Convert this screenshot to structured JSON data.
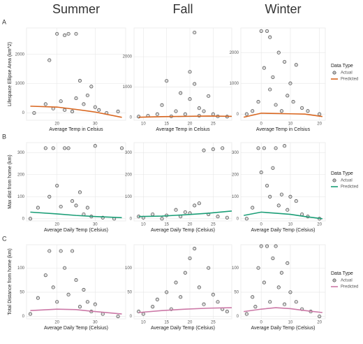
{
  "column_titles": [
    "Summer",
    "Fall",
    "Winter"
  ],
  "row_labels": [
    "A",
    "B",
    "C"
  ],
  "chart_data": [
    {
      "type": "scatter",
      "xlabel": "Average Temp in Celsius",
      "ylabel": "Lifespace Ellipse Area (km^2)",
      "xlim": [
        12,
        38
      ],
      "xticks": [
        20,
        30
      ],
      "ylim": [
        -250,
        2900
      ],
      "yticks": [
        0,
        1000,
        2000
      ],
      "series": [
        {
          "color": "#444444",
          "x": [
            14,
            17,
            18,
            19,
            20,
            21,
            22,
            22,
            23,
            24,
            25,
            25,
            26,
            27,
            28,
            29,
            30,
            31,
            33,
            36
          ],
          "values": [
            0,
            300,
            1800,
            150,
            2700,
            400,
            2650,
            100,
            2700,
            50,
            500,
            2700,
            1100,
            300,
            600,
            900,
            200,
            100,
            0,
            50
          ]
        },
        {
          "color": "#d9661f",
          "line": true,
          "x": [
            13,
            20,
            25,
            30,
            37
          ],
          "values": [
            230,
            200,
            120,
            30,
            -150
          ]
        }
      ]
    },
    {
      "type": "scatter",
      "xlabel": "Average Temp in Celsius",
      "xlim": [
        8,
        29
      ],
      "xticks": [
        10,
        15,
        20,
        25
      ],
      "ylim": [
        -100,
        2950
      ],
      "yticks": [
        0,
        1000,
        2000
      ],
      "series": [
        {
          "color": "#444444",
          "x": [
            9,
            11,
            13,
            14,
            15,
            16,
            17,
            18,
            19,
            20,
            20,
            21,
            21,
            22,
            22,
            23,
            24,
            25,
            26,
            28
          ],
          "values": [
            20,
            50,
            100,
            400,
            1200,
            30,
            200,
            800,
            100,
            1500,
            600,
            2800,
            1100,
            300,
            50,
            200,
            700,
            100,
            30,
            20
          ]
        },
        {
          "color": "#d9661f",
          "line": true,
          "x": [
            9,
            14,
            19,
            24,
            29
          ],
          "values": [
            0,
            20,
            30,
            40,
            30
          ]
        }
      ]
    },
    {
      "type": "scatter",
      "xlabel": "Average Temp in Celsius",
      "legend_title": "Data Type",
      "xlim": [
        -7,
        22
      ],
      "xticks": [
        0,
        10,
        20
      ],
      "ylim": [
        -200,
        2800
      ],
      "yticks": [
        0,
        1000,
        2000
      ],
      "series": [
        {
          "name": "Actual",
          "color": "#444444",
          "x": [
            -5,
            -3,
            -1,
            0,
            1,
            2,
            3,
            3,
            4,
            5,
            6,
            7,
            8,
            9,
            10,
            11,
            12,
            14,
            16,
            20
          ],
          "values": [
            0,
            100,
            400,
            2700,
            1500,
            2700,
            2500,
            800,
            1200,
            300,
            2000,
            100,
            1700,
            600,
            1000,
            400,
            1600,
            200,
            100,
            0
          ]
        },
        {
          "name": "Predicted",
          "color": "#d9661f",
          "line": true,
          "x": [
            -6,
            0,
            5,
            10,
            15,
            21
          ],
          "values": [
            -100,
            30,
            20,
            10,
            0,
            -80
          ]
        }
      ]
    },
    {
      "type": "scatter",
      "xlabel": "Average Daily Temp (Celsius)",
      "ylabel": "Max dist from home (km)",
      "xlim": [
        12,
        38
      ],
      "xticks": [
        20,
        30
      ],
      "ylim": [
        -10,
        345
      ],
      "yticks": [
        0,
        100,
        200,
        300
      ],
      "series": [
        {
          "color": "#444444",
          "x": [
            13,
            15,
            17,
            18,
            19,
            20,
            21,
            22,
            23,
            24,
            25,
            26,
            27,
            28,
            29,
            30,
            32,
            35,
            37
          ],
          "values": [
            0,
            50,
            320,
            100,
            320,
            150,
            55,
            320,
            320,
            80,
            60,
            120,
            20,
            50,
            10,
            330,
            5,
            0,
            320
          ]
        },
        {
          "color": "#1b9e77",
          "line": true,
          "x": [
            13,
            20,
            25,
            30,
            37
          ],
          "values": [
            30,
            22,
            15,
            10,
            5
          ]
        }
      ]
    },
    {
      "type": "scatter",
      "xlabel": "Average Daily Temp (Celsius)",
      "xlim": [
        8,
        29
      ],
      "xticks": [
        10,
        15,
        20,
        25
      ],
      "ylim": [
        -10,
        345
      ],
      "yticks": [
        0,
        100,
        200,
        300
      ],
      "series": [
        {
          "color": "#444444",
          "x": [
            9,
            10,
            12,
            14,
            15,
            17,
            18,
            19,
            20,
            21,
            22,
            23,
            24,
            25,
            26,
            27,
            28
          ],
          "values": [
            10,
            5,
            20,
            0,
            15,
            40,
            10,
            30,
            25,
            60,
            70,
            310,
            20,
            315,
            10,
            320,
            5
          ]
        },
        {
          "color": "#1b9e77",
          "line": true,
          "x": [
            9,
            14,
            19,
            24,
            29
          ],
          "values": [
            10,
            12,
            18,
            25,
            35
          ]
        }
      ]
    },
    {
      "type": "scatter",
      "xlabel": "Average Daily Temp (Celsius)",
      "legend_title": "Data Type",
      "xlim": [
        -7,
        22
      ],
      "xticks": [
        0,
        10,
        20
      ],
      "ylim": [
        -10,
        345
      ],
      "yticks": [
        0,
        100,
        200,
        300
      ],
      "series": [
        {
          "name": "Actual",
          "color": "#444444",
          "x": [
            -5,
            -3,
            -1,
            0,
            1,
            2,
            3,
            4,
            5,
            6,
            7,
            8,
            9,
            10,
            12,
            14,
            16,
            20
          ],
          "values": [
            0,
            50,
            320,
            210,
            320,
            150,
            100,
            230,
            320,
            60,
            110,
            330,
            40,
            100,
            80,
            20,
            10,
            0
          ]
        },
        {
          "name": "Predicted",
          "color": "#1b9e77",
          "line": true,
          "x": [
            -6,
            0,
            5,
            10,
            15,
            21
          ],
          "values": [
            15,
            30,
            25,
            20,
            10,
            0
          ]
        }
      ]
    },
    {
      "type": "scatter",
      "xlabel": "Average Daily Temp (Celsius)",
      "ylabel": "Total Distance from home (km)",
      "xlim": [
        12,
        38
      ],
      "xticks": [
        20,
        30
      ],
      "ylim": [
        -5,
        148
      ],
      "yticks": [
        0,
        50,
        100
      ],
      "series": [
        {
          "color": "#444444",
          "x": [
            13,
            15,
            17,
            18,
            19,
            20,
            21,
            22,
            23,
            24,
            25,
            26,
            27,
            28,
            29,
            30,
            32,
            36
          ],
          "values": [
            5,
            38,
            85,
            135,
            60,
            30,
            135,
            100,
            45,
            135,
            75,
            20,
            55,
            30,
            10,
            25,
            5,
            0
          ]
        },
        {
          "color": "#cc79a7",
          "line": true,
          "x": [
            13,
            20,
            25,
            30,
            37
          ],
          "values": [
            12,
            15,
            14,
            10,
            5
          ]
        }
      ]
    },
    {
      "type": "scatter",
      "xlabel": "Average Daily Temp (Celsius)",
      "xlim": [
        8,
        29
      ],
      "xticks": [
        10,
        15,
        20,
        25
      ],
      "ylim": [
        -5,
        148
      ],
      "yticks": [
        0,
        50,
        100
      ],
      "series": [
        {
          "color": "#444444",
          "x": [
            9,
            10,
            12,
            13,
            15,
            16,
            17,
            18,
            19,
            20,
            21,
            22,
            23,
            24,
            25,
            26,
            27,
            28
          ],
          "values": [
            10,
            5,
            20,
            35,
            50,
            15,
            70,
            40,
            90,
            120,
            140,
            60,
            25,
            100,
            45,
            30,
            15,
            10
          ]
        },
        {
          "color": "#cc79a7",
          "line": true,
          "x": [
            9,
            14,
            19,
            24,
            29
          ],
          "values": [
            8,
            12,
            15,
            17,
            18
          ]
        }
      ]
    },
    {
      "type": "scatter",
      "xlabel": "Average Daily Temp (Celsius)",
      "legend_title": "Data Type",
      "xlim": [
        -7,
        22
      ],
      "xticks": [
        0,
        10,
        20
      ],
      "ylim": [
        -5,
        148
      ],
      "yticks": [
        0,
        50,
        100
      ],
      "series": [
        {
          "name": "Actual",
          "color": "#444444",
          "x": [
            -5,
            -3,
            -2,
            -1,
            0,
            1,
            2,
            3,
            4,
            5,
            6,
            7,
            8,
            9,
            10,
            12,
            14,
            17,
            20
          ],
          "values": [
            5,
            40,
            20,
            100,
            145,
            70,
            145,
            30,
            120,
            145,
            60,
            90,
            25,
            110,
            50,
            30,
            15,
            10,
            0
          ]
        },
        {
          "name": "Predicted",
          "color": "#cc79a7",
          "line": true,
          "x": [
            -6,
            0,
            5,
            10,
            15,
            21
          ],
          "values": [
            10,
            15,
            18,
            16,
            12,
            8
          ]
        }
      ]
    }
  ]
}
